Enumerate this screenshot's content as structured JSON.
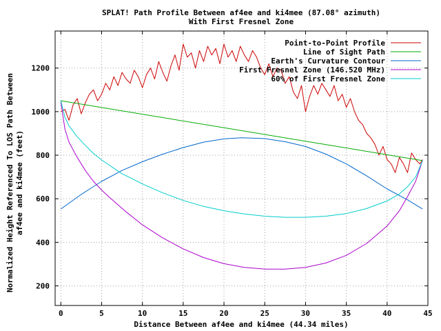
{
  "chart_data": {
    "type": "line",
    "title": "SPLAT! Path Profile Between af4ee and ki4mee (87.08° azimuth)",
    "subtitle": "With First Fresnel Zone",
    "xlabel": "Distance Between af4ee and ki4mee (44.34 miles)",
    "ylabel_lines": [
      "Normalized Height Referenced To LOS Path Between",
      "af4ee and ki4mee (feet)"
    ],
    "xlim": [
      -0.7,
      45
    ],
    "ylim": [
      110,
      1370
    ],
    "x_ticks": [
      0,
      5,
      10,
      15,
      20,
      25,
      30,
      35,
      40,
      45
    ],
    "y_ticks": [
      200,
      400,
      600,
      800,
      1000,
      1200
    ],
    "grid": true,
    "legend_position": "top-right",
    "series": [
      {
        "name": "Point-to-Point Profile",
        "color": "#cc0000",
        "x": [
          0,
          0.5,
          1,
          1.5,
          2,
          2.5,
          3,
          3.5,
          4,
          4.5,
          5,
          5.5,
          6,
          6.5,
          7,
          7.5,
          8,
          8.5,
          9,
          9.5,
          10,
          10.5,
          11,
          11.5,
          12,
          12.5,
          13,
          13.5,
          14,
          14.5,
          15,
          15.5,
          16,
          16.5,
          17,
          17.5,
          18,
          18.5,
          19,
          19.5,
          20,
          20.5,
          21,
          21.5,
          22,
          22.5,
          23,
          23.5,
          24,
          24.5,
          25,
          25.5,
          26,
          26.5,
          27,
          27.5,
          28,
          28.5,
          29,
          29.5,
          30,
          30.5,
          31,
          31.5,
          32,
          32.5,
          33,
          33.5,
          34,
          34.5,
          35,
          35.5,
          36,
          36.5,
          37,
          37.5,
          38,
          38.5,
          39,
          39.5,
          40,
          40.5,
          41,
          41.5,
          42,
          42.5,
          43,
          43.5,
          44,
          44.34
        ],
        "values": [
          1000,
          1010,
          960,
          1030,
          1060,
          990,
          1040,
          1080,
          1100,
          1050,
          1080,
          1130,
          1100,
          1160,
          1120,
          1180,
          1150,
          1130,
          1190,
          1160,
          1110,
          1170,
          1200,
          1150,
          1230,
          1180,
          1140,
          1210,
          1260,
          1190,
          1310,
          1250,
          1270,
          1200,
          1280,
          1230,
          1300,
          1260,
          1290,
          1220,
          1310,
          1250,
          1280,
          1230,
          1300,
          1260,
          1230,
          1280,
          1250,
          1200,
          1170,
          1220,
          1160,
          1200,
          1190,
          1130,
          1160,
          1090,
          1060,
          1120,
          1000,
          1070,
          1120,
          1080,
          1130,
          1100,
          1070,
          1120,
          1050,
          1080,
          1020,
          1060,
          1000,
          960,
          940,
          900,
          880,
          850,
          800,
          840,
          780,
          760,
          720,
          790,
          760,
          720,
          810,
          780,
          760,
          780
        ]
      },
      {
        "name": "Line of Sight Path",
        "color": "#00aa00",
        "x": [
          0,
          44.34
        ],
        "values": [
          1050,
          775
        ]
      },
      {
        "name": "Earth's Curvature Contour",
        "color": "#0066cc",
        "x": [
          0,
          2.5,
          5,
          7.5,
          10,
          12.5,
          15,
          17.5,
          20,
          22.17,
          25,
          27.5,
          30,
          32.5,
          35,
          37.5,
          40,
          42.5,
          44.34
        ],
        "values": [
          553,
          620,
          680,
          730,
          770,
          805,
          835,
          860,
          875,
          880,
          876,
          862,
          840,
          805,
          760,
          705,
          645,
          595,
          553
        ]
      },
      {
        "name": "First Fresnel Zone (146.520 MHz)",
        "color": "#aa00cc",
        "x": [
          0,
          0.5,
          1,
          2,
          3,
          4,
          5,
          6,
          8,
          10,
          12.5,
          15,
          17.5,
          20,
          22.5,
          25,
          27.5,
          30,
          32.5,
          35,
          37.5,
          40,
          41.5,
          42.5,
          43.5,
          44.34
        ],
        "values": [
          1045,
          920,
          860,
          790,
          730,
          680,
          640,
          605,
          540,
          480,
          420,
          370,
          330,
          302,
          285,
          277,
          277,
          285,
          305,
          340,
          395,
          475,
          545,
          610,
          680,
          775
        ]
      },
      {
        "name": "60% of First Fresnel Zone",
        "color": "#00cccc",
        "x": [
          0,
          0.5,
          1,
          2,
          3,
          4,
          5,
          7.5,
          10,
          12.5,
          15,
          17.5,
          20,
          22.5,
          25,
          27.5,
          30,
          32.5,
          35,
          37.5,
          40,
          41.5,
          42.5,
          43.5,
          44.34
        ],
        "values": [
          1050,
          975,
          935,
          885,
          845,
          808,
          778,
          715,
          668,
          627,
          592,
          565,
          545,
          530,
          520,
          515,
          515,
          520,
          532,
          555,
          590,
          622,
          655,
          700,
          775
        ]
      }
    ]
  }
}
